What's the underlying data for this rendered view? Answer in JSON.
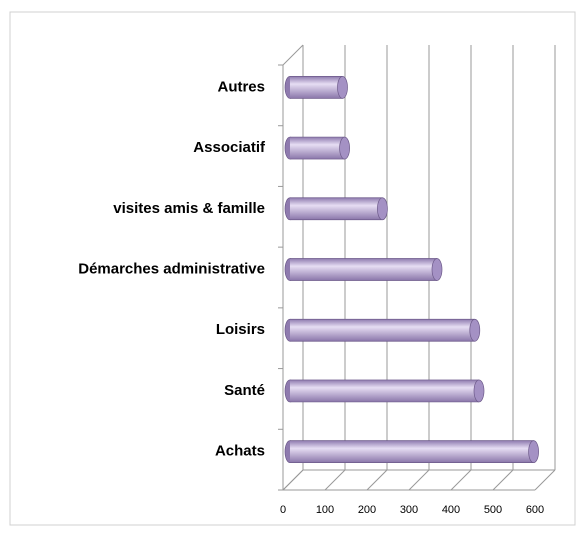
{
  "chart_data": {
    "type": "bar",
    "orientation": "horizontal",
    "categories": [
      "Achats",
      "Santé",
      "Loisirs",
      "Démarches administrative",
      "visites amis & famille",
      "Associatif",
      "Autres"
    ],
    "values": [
      580,
      450,
      440,
      350,
      220,
      130,
      125
    ],
    "color": "#a491c4",
    "xlim": [
      0,
      600
    ],
    "xticks": [
      0,
      100,
      200,
      300,
      400,
      500,
      600
    ],
    "grid": true
  }
}
